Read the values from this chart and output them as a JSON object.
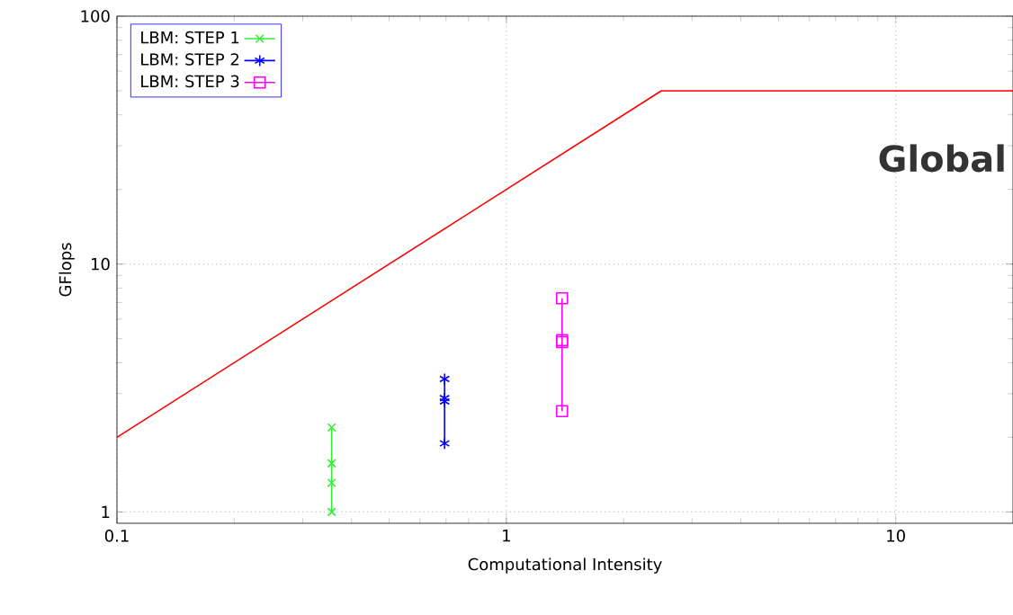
{
  "chart_data": {
    "type": "line",
    "xlabel": "Computational Intensity",
    "ylabel": "GFlops",
    "log": "xy",
    "xlim": [
      0.1,
      20
    ],
    "ylim": [
      0.9,
      100
    ],
    "xticks": [
      0.1,
      1,
      10
    ],
    "yticks": [
      1,
      10,
      100
    ],
    "grid": true,
    "legend": "top left",
    "line_style": "solid",
    "annotations": [
      "Global"
    ],
    "series": [
      {
        "color": "#ff0000",
        "marker": "none",
        "x": [
          0.1,
          2.5,
          20
        ],
        "values": [
          2,
          50,
          50
        ]
      },
      {
        "name": "LBM: STEP 1",
        "color": "#33ee33",
        "marker": "cross",
        "x": [
          0.356,
          0.356,
          0.356,
          0.356
        ],
        "values": [
          2.19,
          1.57,
          1.31,
          1.0
        ]
      },
      {
        "name": "LBM: STEP 2",
        "color": "#0000ff",
        "marker": "cross",
        "x": [
          0.694,
          0.694,
          0.694,
          0.694
        ],
        "values": [
          3.44,
          2.88,
          2.79,
          1.89
        ]
      },
      {
        "name": "LBM: STEP 3",
        "color": "#ff00ff",
        "marker": "square",
        "x": [
          1.39,
          1.39,
          1.39,
          1.39
        ],
        "values": [
          7.28,
          4.93,
          4.84,
          2.55
        ]
      }
    ]
  }
}
